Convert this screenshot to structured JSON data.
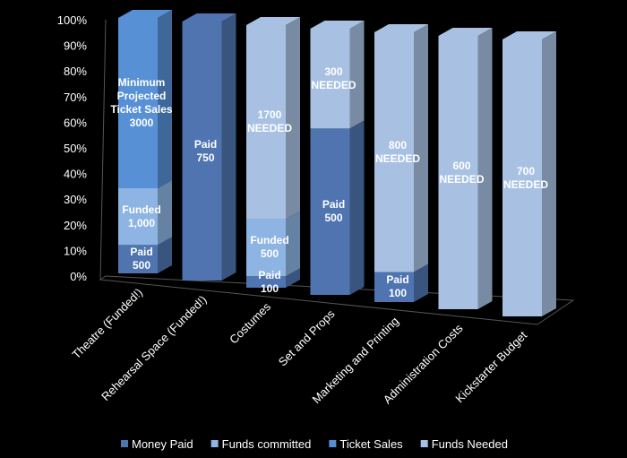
{
  "chart_data": {
    "type": "bar",
    "stacking": "percent",
    "categories": [
      "Theatre (Funded!)",
      "Rehearsal Space (Funded!)",
      "Costumes",
      "Set and Props",
      "Marketing and Printing",
      "Administration Costs",
      "Kickstarter Budget"
    ],
    "series": [
      {
        "name": "Money Paid",
        "color": "#4f74b0",
        "values": [
          500,
          750,
          100,
          500,
          100,
          null,
          null
        ],
        "value_labels": [
          "Paid\n500",
          "Paid\n750",
          "Paid\n100",
          "Paid\n500",
          "Paid\n100",
          null,
          null
        ]
      },
      {
        "name": "Funds committed",
        "color": "#8db4e3",
        "values": [
          1000,
          null,
          500,
          null,
          null,
          null,
          null
        ],
        "value_labels": [
          "Funded\n1,000",
          null,
          "Funded\n500",
          null,
          null,
          null,
          null
        ]
      },
      {
        "name": "Ticket Sales",
        "color": "#5890d6",
        "values": [
          3000,
          null,
          null,
          null,
          null,
          null,
          null
        ],
        "value_labels": [
          "Minimum\nProjected\nTicket Sales\n3000",
          null,
          null,
          null,
          null,
          null,
          null
        ]
      },
      {
        "name": "Funds Needed",
        "color": "#a8c1e3",
        "values": [
          null,
          null,
          1700,
          300,
          800,
          600,
          700
        ],
        "value_labels": [
          null,
          null,
          "1700\nNEEDED",
          "300\nNEEDED",
          "800\nNEEDED",
          "600\nNEEDED",
          "700\nNEEDED"
        ]
      }
    ],
    "ylim": [
      0,
      100
    ],
    "yticks": [
      {
        "value": 0,
        "label": "0%"
      },
      {
        "value": 10,
        "label": "10%"
      },
      {
        "value": 20,
        "label": "20%"
      },
      {
        "value": 30,
        "label": "30%"
      },
      {
        "value": 40,
        "label": "40%"
      },
      {
        "value": 50,
        "label": "50%"
      },
      {
        "value": 60,
        "label": "60%"
      },
      {
        "value": 70,
        "label": "70%"
      },
      {
        "value": 80,
        "label": "80%"
      },
      {
        "value": 90,
        "label": "90%"
      },
      {
        "value": 100,
        "label": "100%"
      }
    ],
    "legend": "bottom"
  }
}
